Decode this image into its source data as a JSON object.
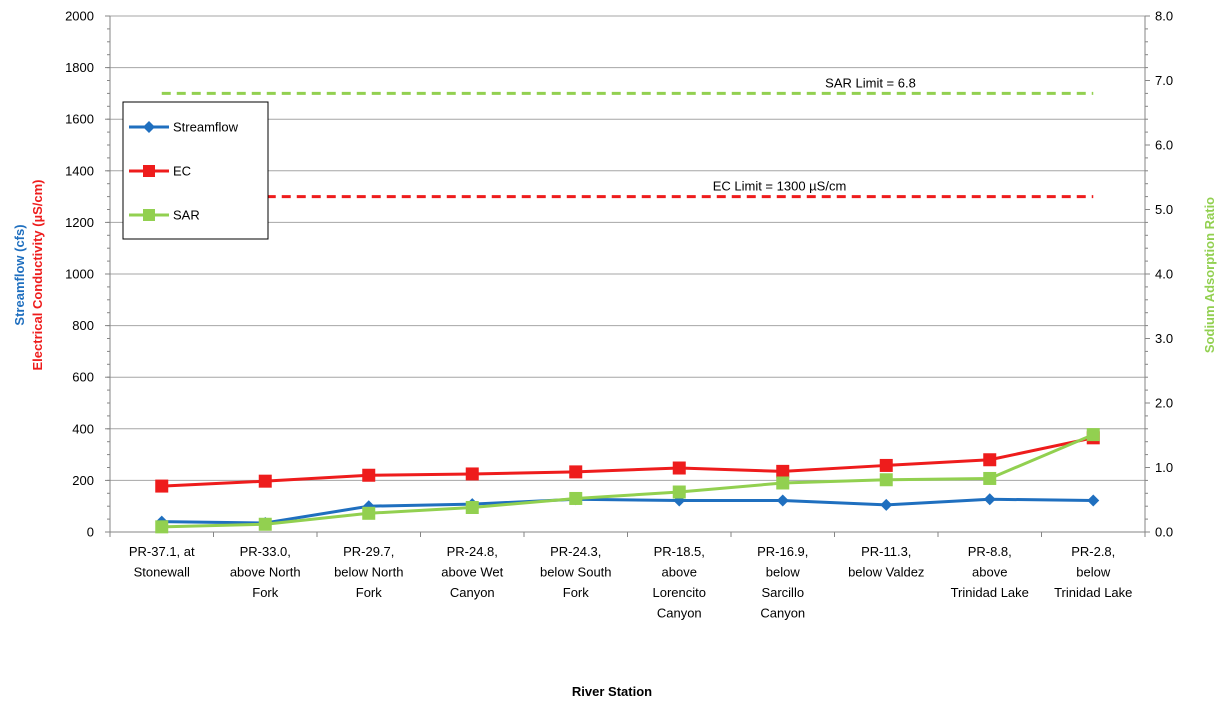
{
  "chart_data": {
    "type": "line",
    "xlabel": "River Station",
    "ylabel_streamflow": "Streamflow (cfs)",
    "ylabel_ec": "Electrical Conductivity  (µS/cm)",
    "y2label": "Sodium Adsorption Ratio",
    "ylim": [
      0,
      2000
    ],
    "y_ticks": [
      "0",
      "200",
      "400",
      "600",
      "800",
      "1000",
      "1200",
      "1400",
      "1600",
      "1800",
      "2000"
    ],
    "y2lim": [
      0,
      8
    ],
    "y2_ticks": [
      "0.0",
      "1.0",
      "2.0",
      "3.0",
      "4.0",
      "5.0",
      "6.0",
      "7.0",
      "8.0"
    ],
    "grid": "horizontal",
    "legend_position": "top-left",
    "categories": [
      [
        "PR-37.1, at",
        "Stonewall"
      ],
      [
        "PR-33.0,",
        "above North",
        "Fork"
      ],
      [
        "PR-29.7,",
        "below North",
        "Fork"
      ],
      [
        "PR-24.8,",
        "above Wet",
        "Canyon"
      ],
      [
        "PR-24.3,",
        "below South",
        "Fork"
      ],
      [
        "PR-18.5,",
        "above",
        "Lorencito",
        "Canyon"
      ],
      [
        "PR-16.9,",
        "below",
        "Sarcillo",
        "Canyon"
      ],
      [
        "PR-11.3,",
        "below Valdez"
      ],
      [
        "PR-8.8,",
        "above",
        "Trinidad Lake"
      ],
      [
        "PR-2.8,",
        "below",
        "Trinidad Lake"
      ]
    ],
    "series": [
      {
        "name": "Streamflow",
        "axis": "left",
        "color": "#1f6fbf",
        "marker": "diamond",
        "values": [
          40,
          35,
          100,
          108,
          127,
          122,
          122,
          105,
          127,
          122
        ]
      },
      {
        "name": "EC",
        "axis": "left",
        "color": "#ee1c1c",
        "marker": "square",
        "values": [
          178,
          197,
          220,
          225,
          233,
          248,
          235,
          258,
          280,
          365
        ]
      },
      {
        "name": "SAR",
        "axis": "right",
        "color": "#92d050",
        "marker": "square",
        "values": [
          0.08,
          0.12,
          0.29,
          0.38,
          0.52,
          0.62,
          0.76,
          0.81,
          0.83,
          1.51
        ]
      }
    ],
    "reference_lines": [
      {
        "label": "SAR Limit = 6.8",
        "axis": "right",
        "value": 6.8,
        "color": "#92d050"
      },
      {
        "label": "EC Limit = 1300  µS/cm",
        "axis": "left",
        "value": 1300,
        "color": "#ee1c1c"
      }
    ],
    "axis_title_colors": {
      "streamflow": "#1f6fbf",
      "ec": "#ee1c1c",
      "sar": "#92d050"
    }
  }
}
